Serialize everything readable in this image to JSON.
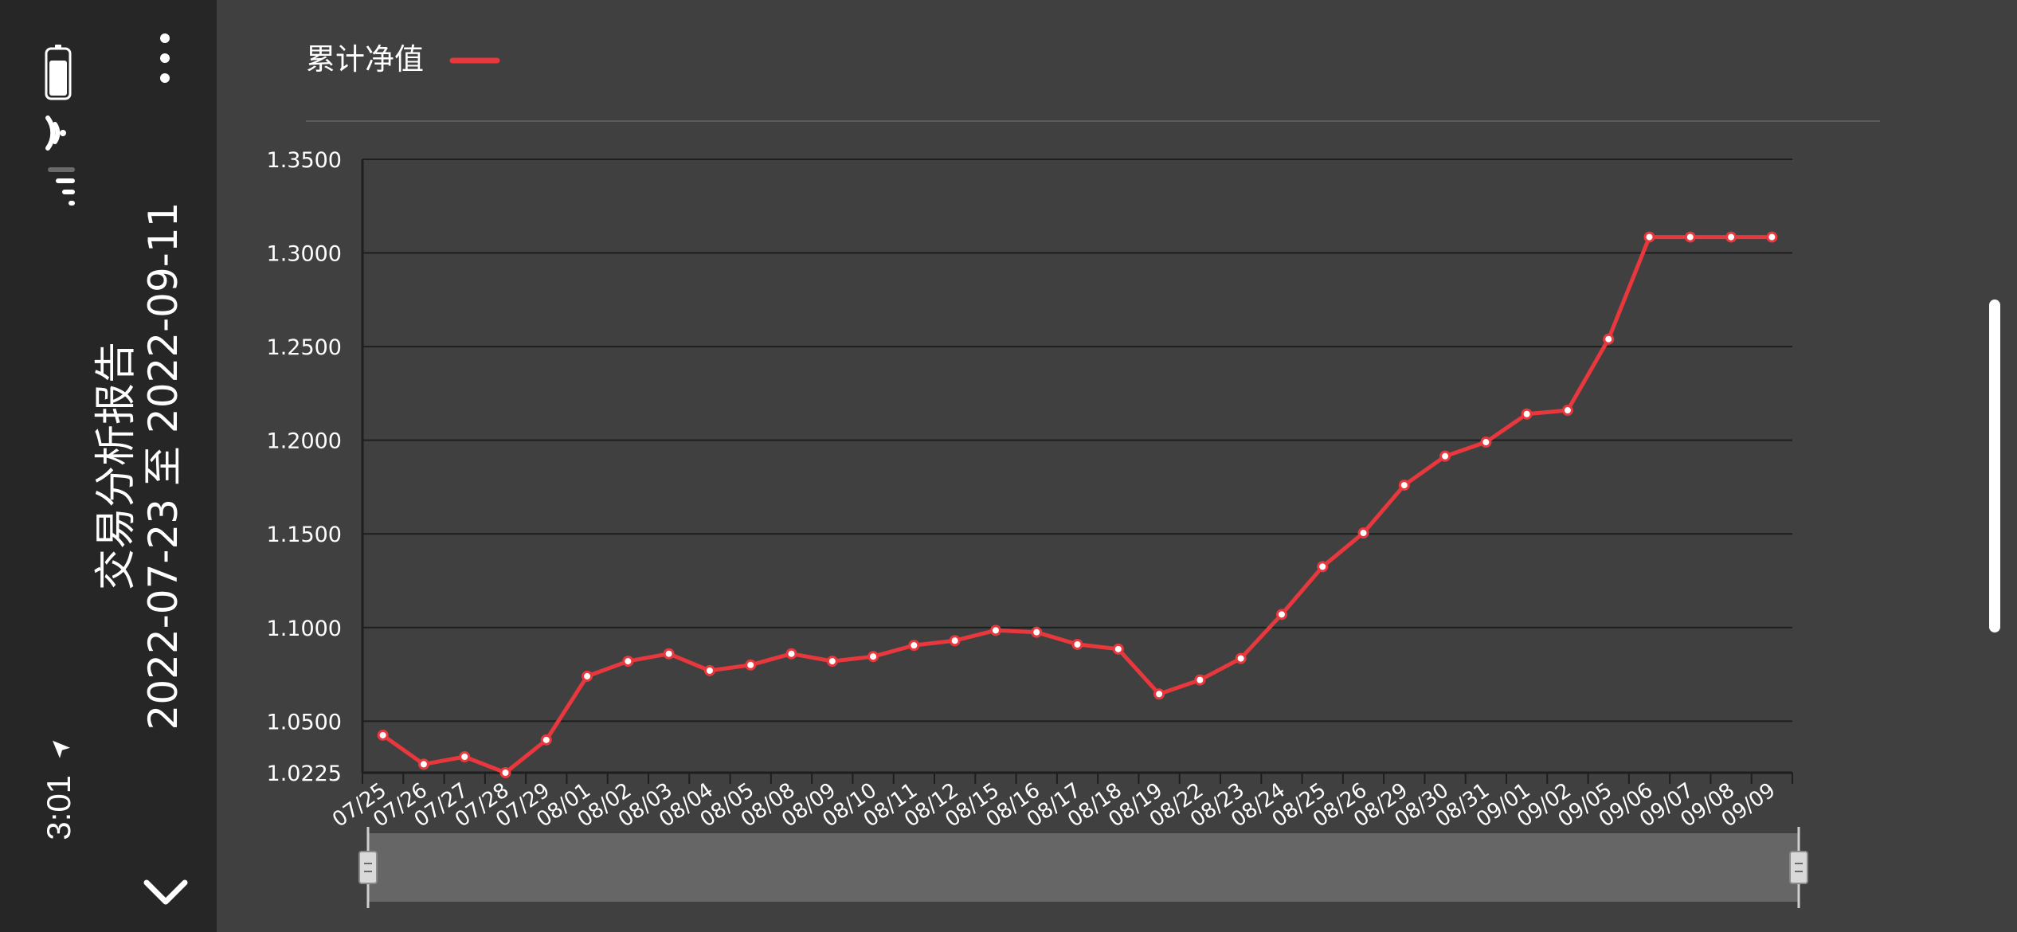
{
  "status": {
    "time": "3:01"
  },
  "header": {
    "title": "交易分析报告",
    "date_range": "2022-07-23 至 2022-09-11"
  },
  "colors": {
    "series": "#e8383d",
    "background": "#404040",
    "panel": "#262626",
    "text": "#ffffff",
    "grid": "#1e1e1e",
    "zoom_track": "#666666"
  },
  "icons": {
    "more": "more-vertical-icon",
    "collapse": "chevron-down-icon",
    "battery": "battery-icon",
    "wifi": "wifi-icon",
    "signal": "cellular-signal-icon"
  },
  "chart_data": {
    "type": "line",
    "title": "",
    "xlabel": "",
    "ylabel": "",
    "legend_position": "top-left",
    "grid": true,
    "ylim": [
      1.0225,
      1.35
    ],
    "yticks": [
      "1.0225",
      "1.0500",
      "1.1000",
      "1.1500",
      "1.2000",
      "1.2500",
      "1.3000",
      "1.3500"
    ],
    "categories": [
      "07/25",
      "07/26",
      "07/27",
      "07/28",
      "07/29",
      "08/01",
      "08/02",
      "08/03",
      "08/04",
      "08/05",
      "08/08",
      "08/09",
      "08/10",
      "08/11",
      "08/12",
      "08/15",
      "08/16",
      "08/17",
      "08/18",
      "08/19",
      "08/22",
      "08/23",
      "08/24",
      "08/25",
      "08/26",
      "08/29",
      "08/30",
      "08/31",
      "09/01",
      "09/02",
      "09/05",
      "09/06",
      "09/07",
      "09/08",
      "09/09"
    ],
    "series": [
      {
        "name": "累计净值",
        "values": [
          1.0425,
          1.027,
          1.031,
          1.0225,
          1.04,
          1.074,
          1.082,
          1.086,
          1.077,
          1.08,
          1.086,
          1.082,
          1.0845,
          1.0905,
          1.093,
          1.0985,
          1.0975,
          1.091,
          1.0885,
          1.0645,
          1.072,
          1.0835,
          1.107,
          1.1325,
          1.1505,
          1.176,
          1.1915,
          1.199,
          1.214,
          1.216,
          1.254,
          1.3085,
          1.3085,
          1.3085,
          1.3085
        ]
      }
    ]
  }
}
